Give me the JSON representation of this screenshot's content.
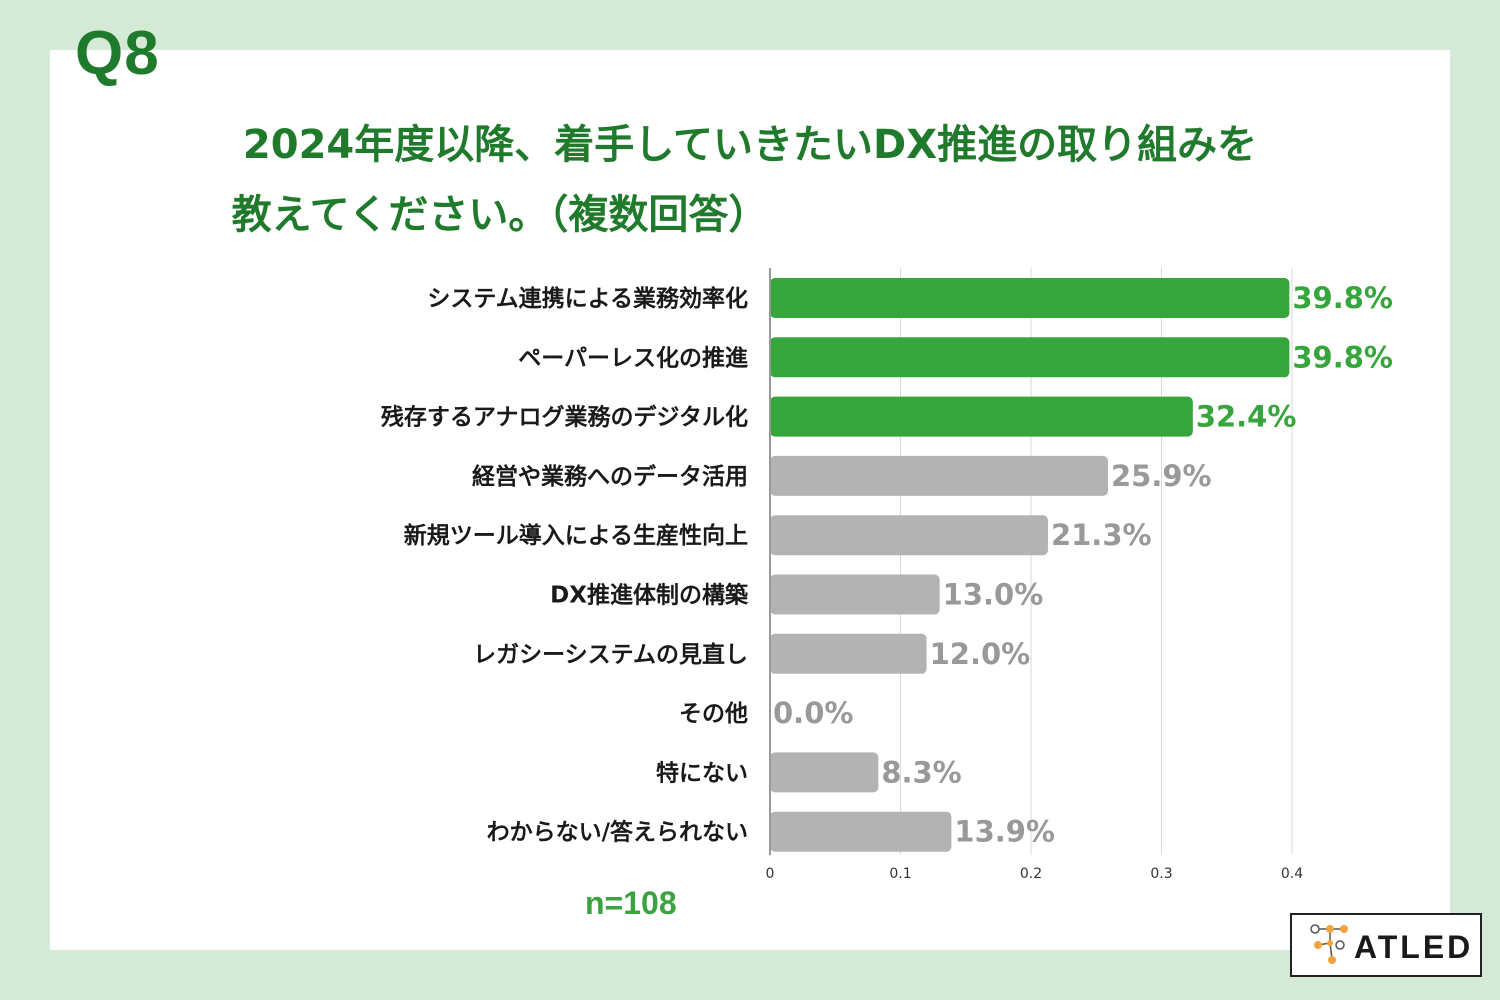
{
  "question_label": "Q8",
  "title_line1": "2024年度以降、着手していきたいDX推進の取り組みを",
  "title_line2": "教えてください。（複数回答）",
  "sample_size": "n=108",
  "logo_text": "ATLED",
  "colors": {
    "background": "#d4ead6",
    "highlight_bar": "#36a53b",
    "other_bar": "#b3b3b3",
    "highlight_text": "#36a53b",
    "other_text": "#999999",
    "title": "#1f7a2b",
    "logo_orange": "#f2a43a"
  },
  "chart_data": {
    "type": "bar",
    "orientation": "horizontal",
    "categories": [
      "システム連携による業務効率化",
      "ペーパーレス化の推進",
      "残存するアナログ業務のデジタル化",
      "経営や業務へのデータ活用",
      "新規ツール導入による生産性向上",
      "DX推進体制の構築",
      "レガシーシステムの見直し",
      "その他",
      "特にない",
      "わからない/答えられない"
    ],
    "values": [
      0.398,
      0.398,
      0.324,
      0.259,
      0.213,
      0.13,
      0.12,
      0.0,
      0.083,
      0.139
    ],
    "value_labels": [
      "39.8%",
      "39.8%",
      "32.4%",
      "25.9%",
      "21.3%",
      "13.0%",
      "12.0%",
      "0.0%",
      "8.3%",
      "13.9%"
    ],
    "highlighted": [
      true,
      true,
      true,
      false,
      false,
      false,
      false,
      false,
      false,
      false
    ],
    "xlim": [
      0,
      0.4
    ],
    "xticks": [
      0,
      0.1,
      0.2,
      0.3,
      0.4
    ],
    "xtick_labels": [
      "0",
      "0.1",
      "0.2",
      "0.3",
      "0.4"
    ],
    "grid": "vertical"
  }
}
